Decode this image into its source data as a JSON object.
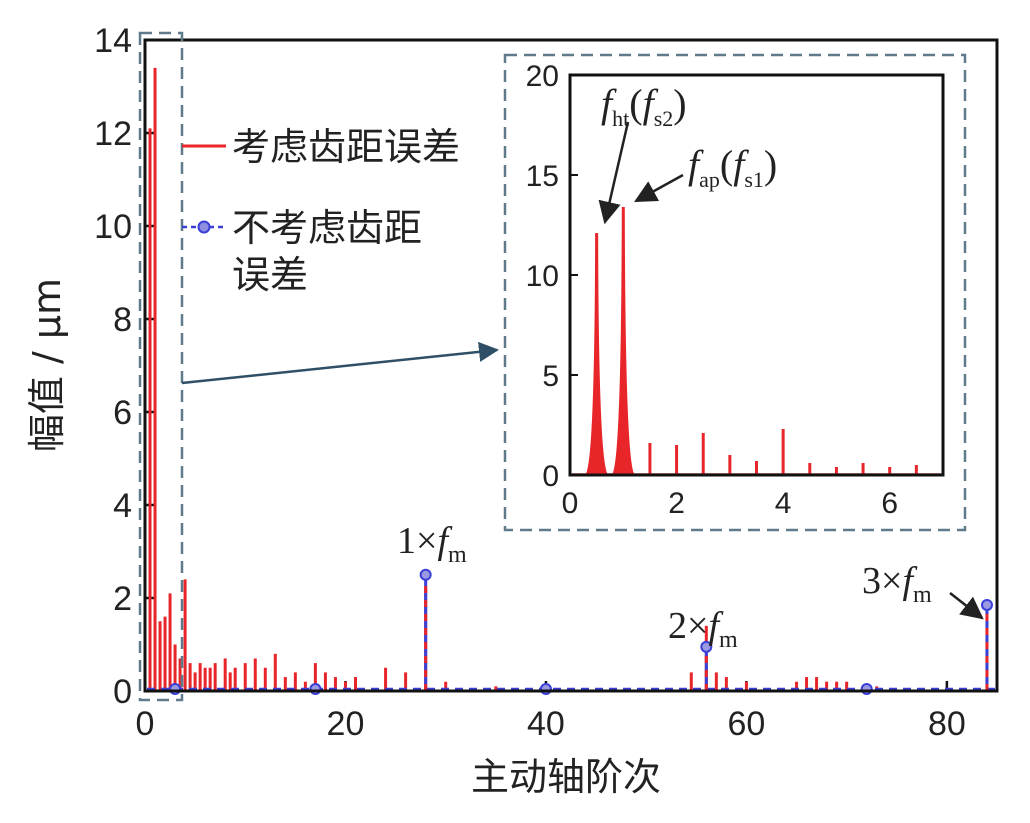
{
  "chart_data": [
    {
      "type": "line",
      "title": "",
      "xlabel": "主动轴阶次",
      "ylabel": "幅值 / μm",
      "xlim": [
        0,
        85
      ],
      "ylim": [
        0,
        14
      ],
      "xticks": [
        "0",
        "20",
        "40",
        "60",
        "80"
      ],
      "yticks": [
        "0",
        "2",
        "4",
        "6",
        "8",
        "10",
        "12",
        "14"
      ],
      "grid": false,
      "legend": "top-left",
      "series": [
        {
          "name": "考虑齿距误差",
          "color": "#e8262a",
          "style": "stem",
          "points": [
            [
              0.5,
              12.1
            ],
            [
              1.0,
              13.4
            ],
            [
              1.5,
              1.5
            ],
            [
              2.0,
              1.6
            ],
            [
              2.5,
              2.1
            ],
            [
              3.0,
              1.0
            ],
            [
              3.5,
              0.7
            ],
            [
              4.0,
              2.4
            ],
            [
              4.5,
              0.6
            ],
            [
              5.0,
              0.4
            ],
            [
              5.5,
              0.6
            ],
            [
              6.0,
              0.5
            ],
            [
              6.5,
              0.5
            ],
            [
              7.0,
              0.6
            ],
            [
              8.0,
              0.7
            ],
            [
              8.5,
              0.4
            ],
            [
              9.0,
              0.5
            ],
            [
              10.0,
              0.6
            ],
            [
              11.0,
              0.7
            ],
            [
              12.0,
              0.5
            ],
            [
              13.0,
              0.8
            ],
            [
              14.0,
              0.3
            ],
            [
              15.0,
              0.4
            ],
            [
              16.0,
              0.2
            ],
            [
              17.0,
              0.6
            ],
            [
              18.0,
              0.4
            ],
            [
              19.0,
              0.3
            ],
            [
              20.0,
              0.2
            ],
            [
              21.0,
              0.3
            ],
            [
              24.0,
              0.5
            ],
            [
              26.0,
              0.4
            ],
            [
              28.0,
              2.2
            ],
            [
              30.0,
              0.2
            ],
            [
              35.0,
              0.1
            ],
            [
              54.5,
              0.4
            ],
            [
              56.0,
              1.4
            ],
            [
              57.0,
              0.4
            ],
            [
              58.0,
              0.3
            ],
            [
              60.0,
              0.2
            ],
            [
              65.0,
              0.2
            ],
            [
              66.0,
              0.3
            ],
            [
              67.0,
              0.3
            ],
            [
              68.0,
              0.2
            ],
            [
              69.0,
              0.2
            ],
            [
              70.0,
              0.2
            ],
            [
              73.0,
              0.1
            ],
            [
              84.0,
              1.85
            ]
          ]
        },
        {
          "name": "不考虑齿距误差",
          "color": "#3a3fd6",
          "style": "stem-marker",
          "points": [
            [
              3.0,
              0.0
            ],
            [
              17.0,
              0.0
            ],
            [
              28.0,
              2.5
            ],
            [
              40.0,
              0.0
            ],
            [
              56.0,
              0.95
            ],
            [
              72.0,
              0.0
            ],
            [
              84.0,
              1.85
            ]
          ]
        }
      ],
      "annotations": [
        {
          "text": "1×f",
          "sub": "m",
          "x": 28,
          "y": 2.5
        },
        {
          "text": "2×f",
          "sub": "m",
          "x": 56,
          "y": 1.4
        },
        {
          "text": "3×f",
          "sub": "m",
          "x": 84,
          "y": 1.85
        }
      ]
    },
    {
      "type": "bar",
      "title": "",
      "role": "inset",
      "xlim": [
        0,
        7
      ],
      "ylim": [
        0,
        20
      ],
      "xticks": [
        "0",
        "2",
        "4",
        "6"
      ],
      "yticks": [
        "0",
        "5",
        "10",
        "15",
        "20"
      ],
      "grid": false,
      "series": [
        {
          "name": "考虑齿距误差",
          "color": "#e8262a",
          "points": [
            [
              0.5,
              12.1
            ],
            [
              1.0,
              13.4
            ],
            [
              1.5,
              1.6
            ],
            [
              2.0,
              1.5
            ],
            [
              2.5,
              2.1
            ],
            [
              3.0,
              1.0
            ],
            [
              3.5,
              0.7
            ],
            [
              4.0,
              2.3
            ],
            [
              4.5,
              0.6
            ],
            [
              5.0,
              0.4
            ],
            [
              5.5,
              0.6
            ],
            [
              6.0,
              0.4
            ],
            [
              6.5,
              0.5
            ]
          ]
        }
      ],
      "annotations": [
        {
          "text": "f",
          "sub": "ht",
          "suffix": "(f",
          "sub2": "s2",
          "close": ")",
          "x": 0.5,
          "y": 12.1
        },
        {
          "text": "f",
          "sub": "ap",
          "suffix": "(f",
          "sub2": "s1",
          "close": ")",
          "x": 1.0,
          "y": 13.4
        }
      ]
    }
  ]
}
